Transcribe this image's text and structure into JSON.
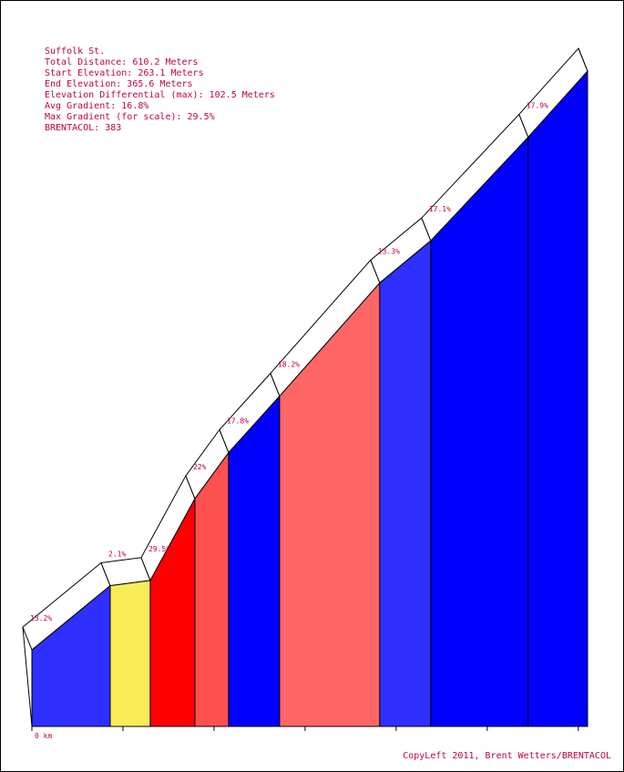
{
  "info": {
    "name": "Suffolk St.",
    "total_distance": "Total Distance: 610.2 Meters",
    "start_elevation": "Start Elevation: 263.1 Meters",
    "end_elevation": "End Elevation: 365.6 Meters",
    "elevation_differential": "Elevation Differential (max): 102.5 Meters",
    "avg_gradient": "Avg Gradient: 16.8%",
    "max_gradient": "Max Gradient (for scale): 29.5%",
    "brentacol": "BRENTACOL: 383"
  },
  "footer": "CopyLeft 2011, Brent Wetters/BRENTACOL",
  "chart_data": {
    "type": "area",
    "title": "Suffolk St.",
    "xlabel": "",
    "ylabel": "",
    "x_unit": "m",
    "y_unit": "m",
    "tick_label": "0 km",
    "total_distance": 610.2,
    "start_elevation": 263.1,
    "end_elevation": 365.6,
    "xlim": [
      0,
      610.2
    ],
    "segments": [
      {
        "start": 0.0,
        "end": 86.0,
        "gradient": 13.2,
        "label": "13.2%",
        "color": "#2f2fff"
      },
      {
        "start": 86.0,
        "end": 130.0,
        "gradient": 2.1,
        "label": "2.1%",
        "color": "#f9ec59"
      },
      {
        "start": 130.0,
        "end": 179.0,
        "gradient": 29.5,
        "label": "29.5%",
        "color": "#ff0000"
      },
      {
        "start": 179.0,
        "end": 216.0,
        "gradient": 22.0,
        "label": "22%",
        "color": "#ff5050"
      },
      {
        "start": 216.0,
        "end": 272.0,
        "gradient": 17.8,
        "label": "17.8%",
        "color": "#0000ff"
      },
      {
        "start": 272.0,
        "end": 382.0,
        "gradient": 18.2,
        "label": "18.2%",
        "color": "#ff6666"
      },
      {
        "start": 382.0,
        "end": 438.0,
        "gradient": 13.3,
        "label": "13.3%",
        "color": "#2f2fff"
      },
      {
        "start": 438.0,
        "end": 545.0,
        "gradient": 17.1,
        "label": "17.1%",
        "color": "#0000ff"
      },
      {
        "start": 545.0,
        "end": 610.2,
        "gradient": 17.9,
        "label": "17.9%",
        "color": "#0000ff"
      }
    ]
  }
}
